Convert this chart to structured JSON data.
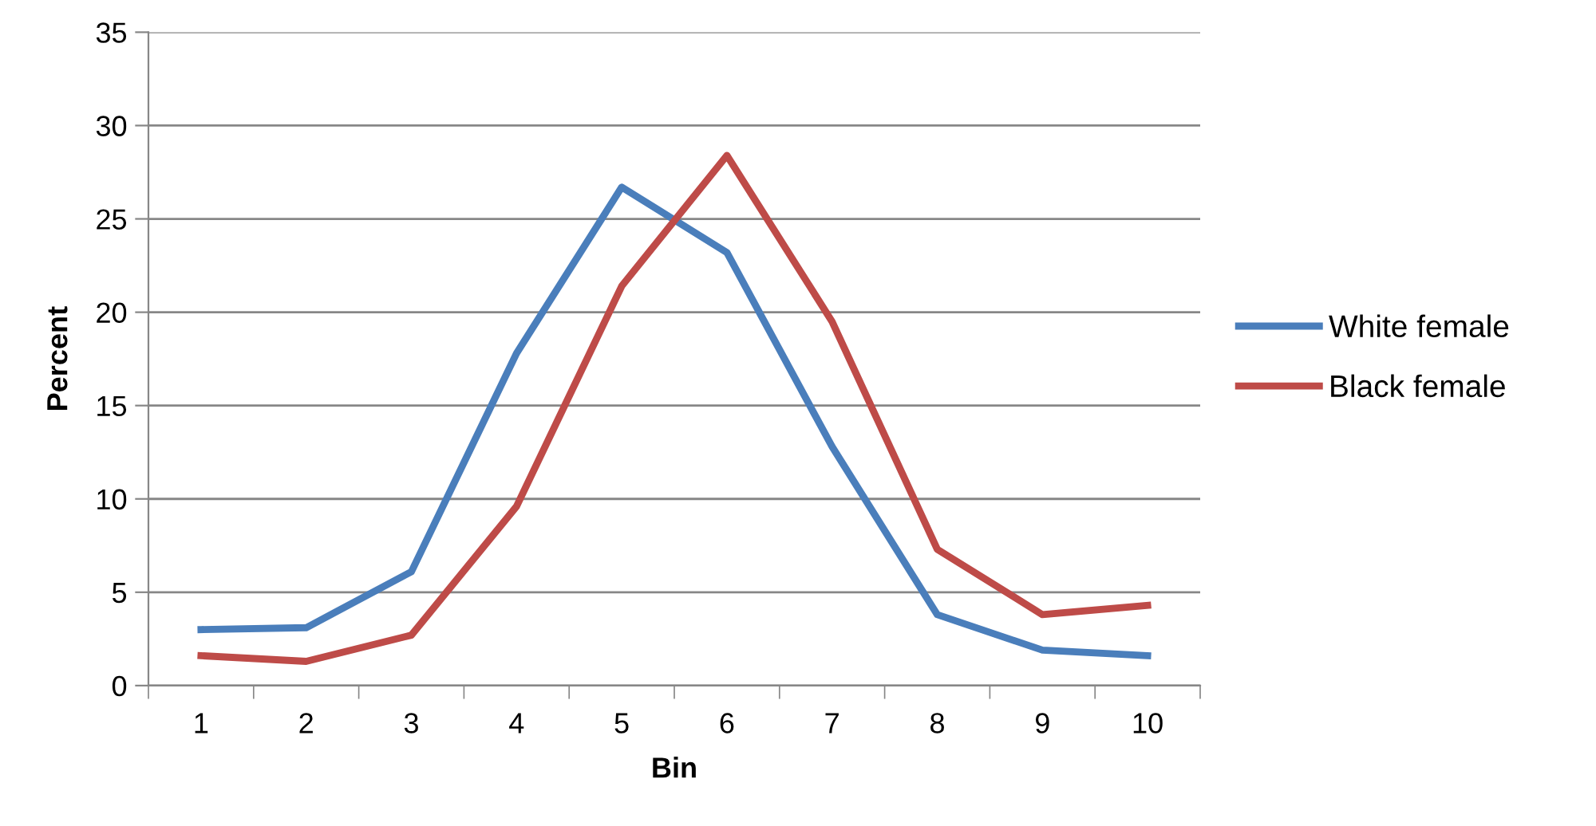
{
  "chart_data": {
    "type": "line",
    "xlabel": "Bin",
    "ylabel": "Percent",
    "categories": [
      "1",
      "2",
      "3",
      "4",
      "5",
      "6",
      "7",
      "8",
      "9",
      "10"
    ],
    "series": [
      {
        "name": "White female",
        "color": "#4a7ebb",
        "values": [
          3.0,
          3.1,
          6.1,
          17.8,
          26.7,
          23.2,
          12.8,
          3.8,
          1.9,
          1.6
        ]
      },
      {
        "name": "Black female",
        "color": "#be4b48",
        "values": [
          1.6,
          1.3,
          2.7,
          9.6,
          21.4,
          28.4,
          19.5,
          7.3,
          3.8,
          4.3
        ]
      }
    ],
    "ylim": [
      0,
      35
    ],
    "yticks": [
      0,
      5,
      10,
      15,
      20,
      25,
      30,
      35
    ],
    "grid": "y",
    "legend": "right",
    "marker": "none",
    "line_style": "solid"
  }
}
